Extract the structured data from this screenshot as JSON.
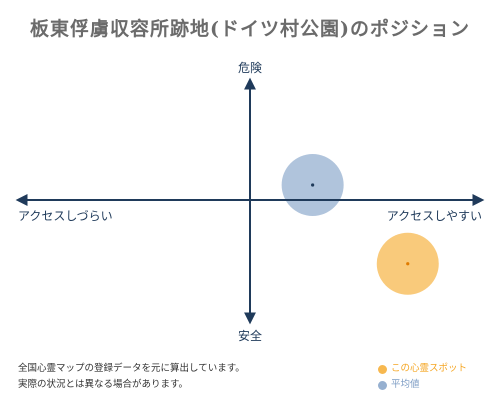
{
  "title": "板東俘虜収容所跡地(ドイツ村公園)のポジション",
  "chart_data": {
    "type": "scatter",
    "axes": {
      "top": "危険",
      "bottom": "安全",
      "left": "アクセスしづらい",
      "right": "アクセスしやすい"
    },
    "xlim": [
      -1,
      1
    ],
    "ylim": [
      -1,
      1
    ],
    "grid": false,
    "series": [
      {
        "name": "この心霊スポット",
        "color": "#f5a623",
        "x": 0.68,
        "y": -0.51
      },
      {
        "name": "平均値",
        "color": "#7c9cc4",
        "x": 0.27,
        "y": 0.12
      }
    ],
    "legend_position": "bottom-right"
  },
  "footer": {
    "line1": "全国心霊マップの登録データを元に算出しています。",
    "line2": "実際の状況とは異なる場合があります。"
  }
}
